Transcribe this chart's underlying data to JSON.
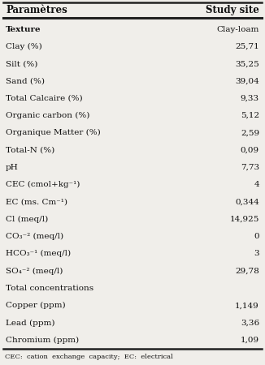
{
  "col1_header": "Paramètres",
  "col2_header": "Study site",
  "rows": [
    {
      "param": "Texture",
      "value": "Clay-loam",
      "bold": true
    },
    {
      "param": "Clay (%)",
      "value": "25,71",
      "bold": false
    },
    {
      "param": "Silt (%)",
      "value": "35,25",
      "bold": false
    },
    {
      "param": "Sand (%)",
      "value": "39,04",
      "bold": false
    },
    {
      "param": "Total Calcaire (%)",
      "value": "9,33",
      "bold": false
    },
    {
      "param": "Organic carbon (%)",
      "value": "5,12",
      "bold": false
    },
    {
      "param": "Organique Matter (%)",
      "value": "2,59",
      "bold": false
    },
    {
      "param": "Total-N (%)",
      "value": "0,09",
      "bold": false
    },
    {
      "param": "pH",
      "value": "7,73",
      "bold": false
    },
    {
      "param": "CEC (cmol+kg⁻¹)",
      "value": "4",
      "bold": false
    },
    {
      "param": "EC (ms. Cm⁻¹)",
      "value": "0,344",
      "bold": false
    },
    {
      "param": "Cl (meq/l)",
      "value": "14,925",
      "bold": false
    },
    {
      "param": "CO₃⁻² (meq/l)",
      "value": "0",
      "bold": false
    },
    {
      "param": "HCO₃⁻¹ (meq/l)",
      "value": "3",
      "bold": false
    },
    {
      "param": "SO₄⁻² (meq/l)",
      "value": "29,78",
      "bold": false
    },
    {
      "param": "Total concentrations",
      "value": "",
      "bold": false
    },
    {
      "param": "Copper (ppm)",
      "value": "1,149",
      "bold": false
    },
    {
      "param": "Lead (ppm)",
      "value": "3,36",
      "bold": false
    },
    {
      "param": "Chromium (ppm)",
      "value": "1,09",
      "bold": false
    }
  ],
  "footnote": "CEC:  cation  exchange  capacity;  EC:  electrical",
  "bg_color": "#f0eeea",
  "line_color": "#222222",
  "text_color": "#111111",
  "font_size": 7.5,
  "header_font_size": 8.5,
  "footnote_font_size": 6.0
}
